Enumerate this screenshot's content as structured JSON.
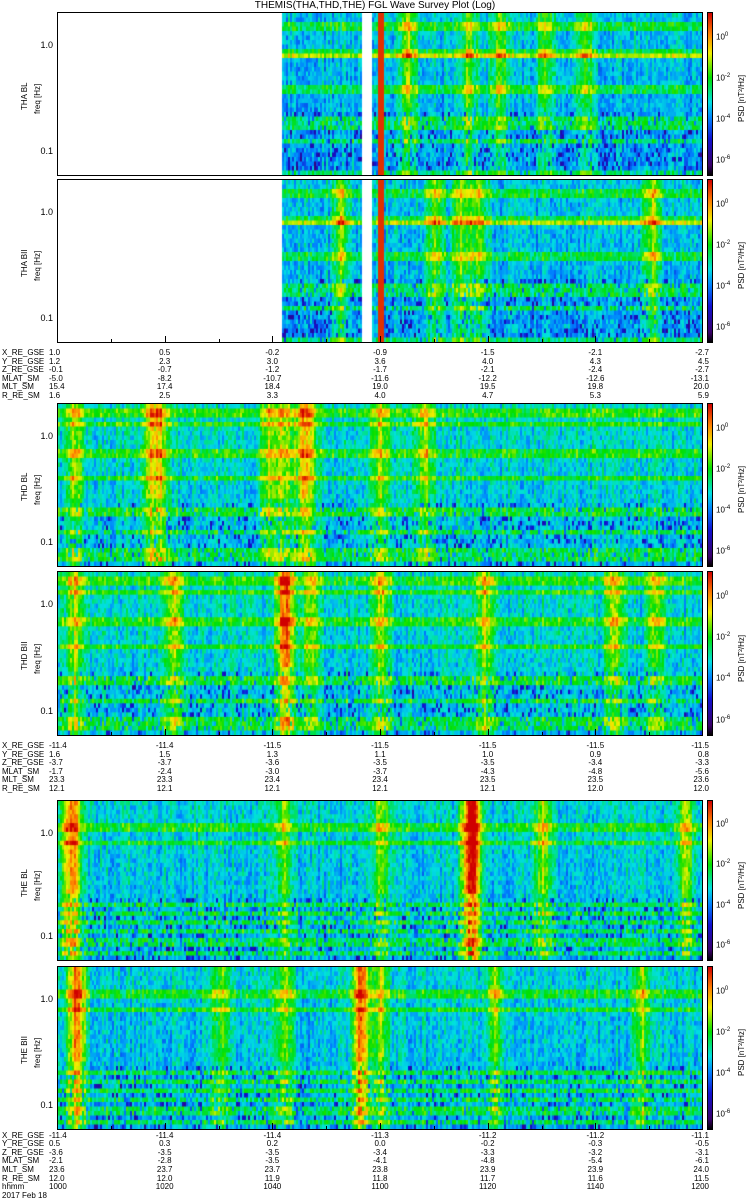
{
  "chart_data": {
    "type": "heatmap",
    "title": "THEMIS(THA,THD,THE) FGL Wave Survey Plot (Log)",
    "x_unit": "hhmm",
    "x_range_minutes": [
      600,
      720
    ],
    "colorbar": {
      "label": "PSD [nT²/Hz]",
      "ticks": [
        "10^0",
        "10^-2",
        "10^-4",
        "10^-6"
      ],
      "log_range": [
        -6.8,
        1.2
      ],
      "colormap": "rainbow"
    },
    "ylim_hz": [
      0.058,
      2.06
    ],
    "ytick_labels": [
      "1.0",
      "0.1"
    ],
    "groups": [
      {
        "probe": "THA",
        "panels": [
          {
            "ylabel": "THA BL",
            "yunit": "freq [Hz]"
          },
          {
            "ylabel": "THA BII",
            "yunit": "freq [Hz]"
          }
        ],
        "data_start_minute": 641.5,
        "gaps_minutes": [
          [
            656.5,
            658.5
          ]
        ],
        "bright_line_minute": 660,
        "activity": 0.35,
        "ephem": [
          {
            "label": "X_RE_GSE",
            "values": [
              "1.0",
              "0.5",
              "-0.2",
              "-0.9",
              "-1.5",
              "-2.1",
              "-2.7"
            ]
          },
          {
            "label": "Y_RE_GSE",
            "values": [
              "1.2",
              "2.3",
              "3.0",
              "3.6",
              "4.0",
              "4.3",
              "4.5"
            ]
          },
          {
            "label": "Z_RE_GSE",
            "values": [
              "-0.1",
              "-0.7",
              "-1.2",
              "-1.7",
              "-2.1",
              "-2.4",
              "-2.7"
            ]
          },
          {
            "label": "MLAT_SM",
            "values": [
              "-5.0",
              "-8.2",
              "-10.7",
              "-11.6",
              "-12.2",
              "-12.6",
              "-13.1"
            ]
          },
          {
            "label": "MLT_SM",
            "values": [
              "15.4",
              "17.4",
              "18.4",
              "19.0",
              "19.5",
              "19.8",
              "20.0"
            ]
          },
          {
            "label": "R_RE_SM",
            "values": [
              "1.6",
              "2.5",
              "3.3",
              "4.0",
              "4.7",
              "5.3",
              "5.9"
            ]
          }
        ]
      },
      {
        "probe": "THD",
        "panels": [
          {
            "ylabel": "THD BL",
            "yunit": "freq [Hz]"
          },
          {
            "ylabel": "THD BII",
            "yunit": "freq [Hz]"
          }
        ],
        "data_start_minute": 600,
        "gaps_minutes": [],
        "activity": 0.6,
        "ephem": [
          {
            "label": "X_RE_GSE",
            "values": [
              "-11.4",
              "-11.4",
              "-11.5",
              "-11.5",
              "-11.5",
              "-11.5",
              "-11.5"
            ]
          },
          {
            "label": "Y_RE_GSE",
            "values": [
              "1.6",
              "1.5",
              "1.3",
              "1.1",
              "1.0",
              "0.9",
              "0.8"
            ]
          },
          {
            "label": "Z_RE_GSE",
            "values": [
              "-3.7",
              "-3.7",
              "-3.6",
              "-3.5",
              "-3.5",
              "-3.4",
              "-3.3"
            ]
          },
          {
            "label": "MLAT_SM",
            "values": [
              "-1.7",
              "-2.4",
              "-3.0",
              "-3.7",
              "-4.3",
              "-4.8",
              "-5.6"
            ]
          },
          {
            "label": "MLT_SM",
            "values": [
              "23.3",
              "23.3",
              "23.4",
              "23.4",
              "23.5",
              "23.5",
              "23.6"
            ]
          },
          {
            "label": "R_RE_SM",
            "values": [
              "12.1",
              "12.1",
              "12.1",
              "12.1",
              "12.1",
              "12.0",
              "12.0"
            ]
          }
        ]
      },
      {
        "probe": "THE",
        "panels": [
          {
            "ylabel": "THE BL",
            "yunit": "freq [Hz]"
          },
          {
            "ylabel": "THE BII",
            "yunit": "freq [Hz]"
          }
        ],
        "data_start_minute": 600,
        "gaps_minutes": [],
        "activity": 0.5,
        "ephem": [
          {
            "label": "X_RE_GSE",
            "values": [
              "-11.4",
              "-11.4",
              "-11.4",
              "-11.3",
              "-11.2",
              "-11.2",
              "-11.1"
            ]
          },
          {
            "label": "Y_RE_GSE",
            "values": [
              "0.5",
              "0.3",
              "0.2",
              "0.0",
              "-0.2",
              "-0.3",
              "-0.5"
            ]
          },
          {
            "label": "Z_RE_GSE",
            "values": [
              "-3.6",
              "-3.5",
              "-3.5",
              "-3.4",
              "-3.3",
              "-3.2",
              "-3.1"
            ]
          },
          {
            "label": "MLAT_SM",
            "values": [
              "-2.1",
              "-2.8",
              "-3.5",
              "-4.1",
              "-4.8",
              "-5.4",
              "-6.1"
            ]
          },
          {
            "label": "MLT_SM",
            "values": [
              "23.6",
              "23.7",
              "23.7",
              "23.8",
              "23.9",
              "23.9",
              "24.0"
            ]
          },
          {
            "label": "R_RE_SM",
            "values": [
              "12.0",
              "12.0",
              "11.9",
              "11.8",
              "11.7",
              "11.6",
              "11.5"
            ]
          },
          {
            "label": "hhmm",
            "values": [
              "1000",
              "1020",
              "1040",
              "1100",
              "1120",
              "1140",
              "1200"
            ]
          }
        ],
        "date": "2017 Feb 18"
      }
    ]
  }
}
